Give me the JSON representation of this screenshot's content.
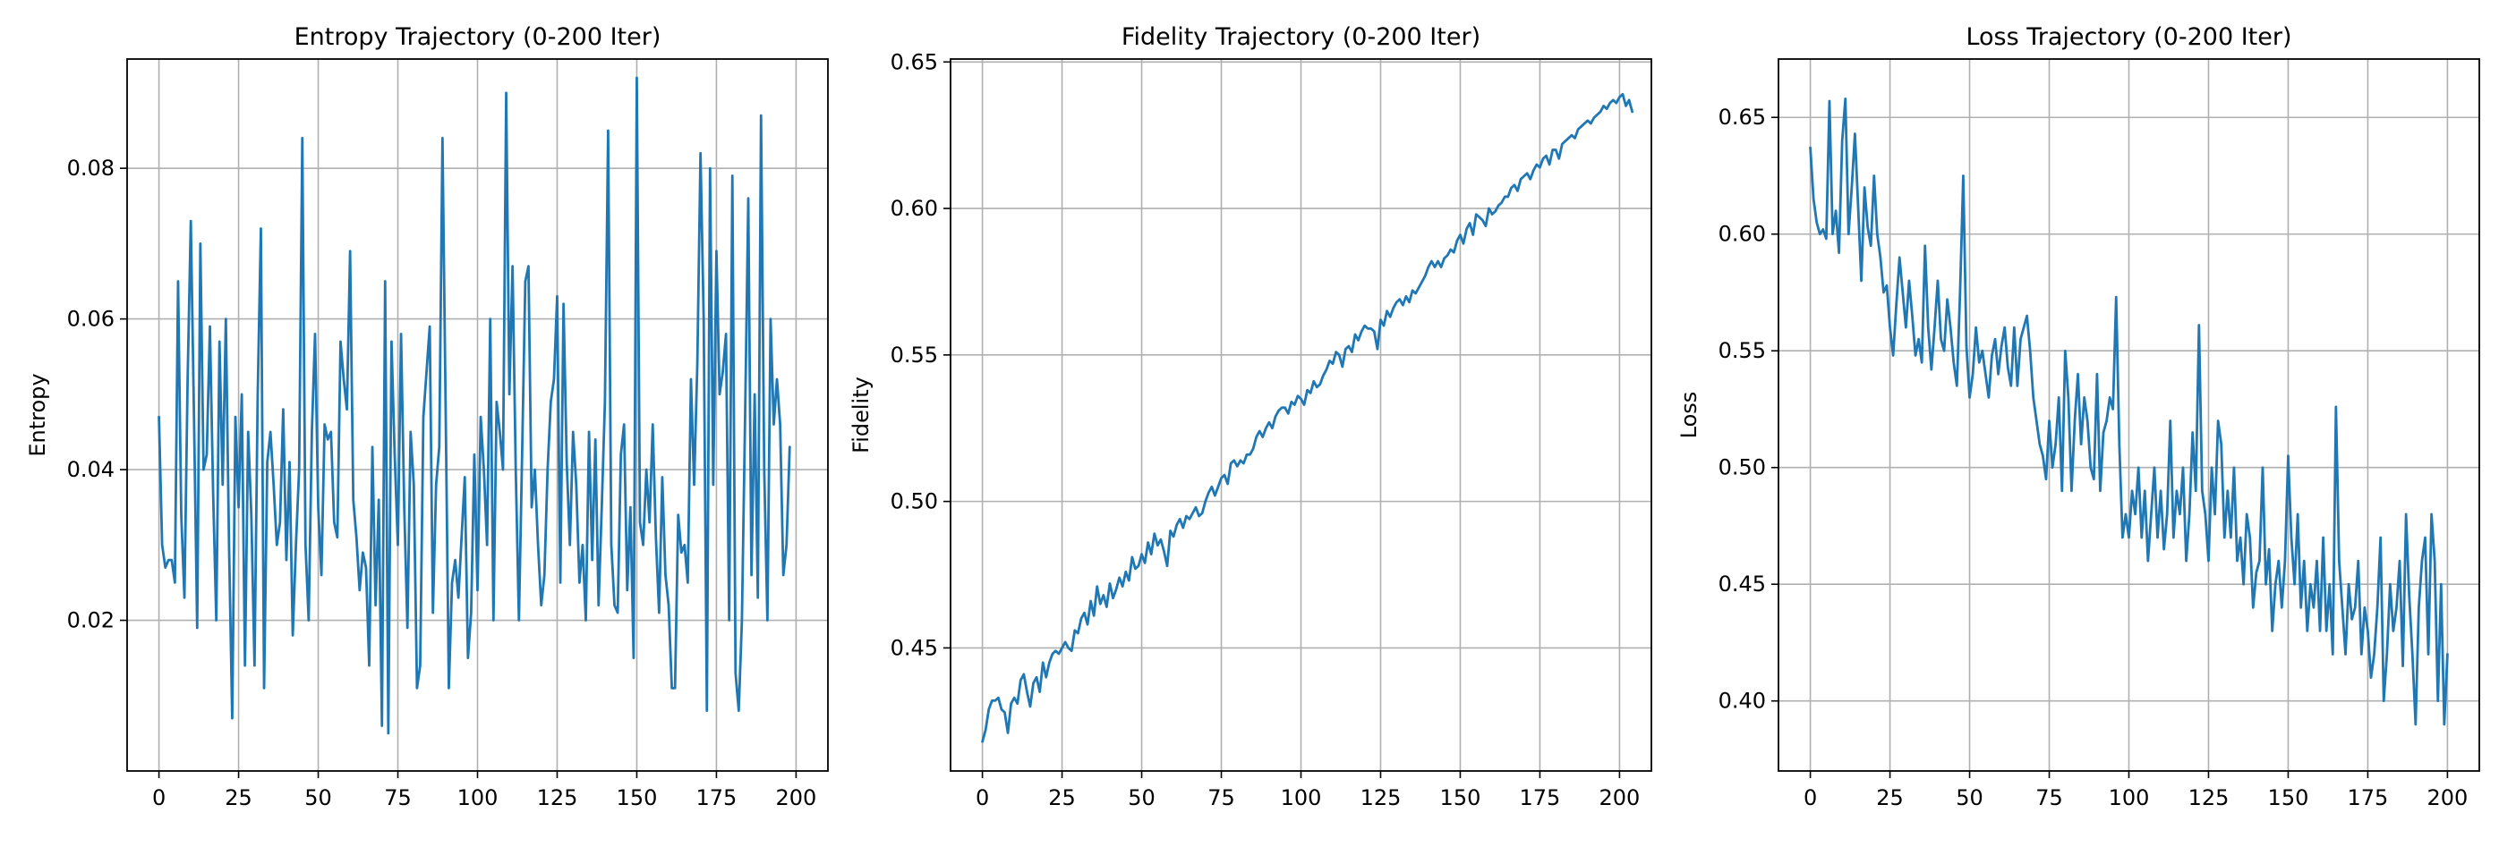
{
  "figure": {
    "background": "#ffffff",
    "line_color": "#1f77b4",
    "grid_color": "#b0b0b0"
  },
  "chart_data": [
    {
      "type": "line",
      "title": "Entropy Trajectory (0-200 Iter)",
      "xlabel": "",
      "ylabel": "Entropy",
      "xlim": [
        -10,
        210
      ],
      "ylim": [
        0.0,
        0.0945
      ],
      "xticks": [
        0,
        25,
        50,
        75,
        100,
        125,
        150,
        175,
        200
      ],
      "xtick_labels": [
        "0",
        "25",
        "50",
        "75",
        "100",
        "125",
        "150",
        "175",
        "200"
      ],
      "yticks": [
        0.02,
        0.04,
        0.06,
        0.08
      ],
      "ytick_labels": [
        "0.02",
        "0.04",
        "0.06",
        "0.08"
      ],
      "grid": true,
      "series": [
        {
          "color": "#1f77b4",
          "x_start": 0,
          "x_step": 1,
          "values": [
            0.047,
            0.03,
            0.027,
            0.028,
            0.028,
            0.025,
            0.065,
            0.034,
            0.023,
            0.052,
            0.073,
            0.047,
            0.019,
            0.07,
            0.04,
            0.042,
            0.059,
            0.037,
            0.02,
            0.057,
            0.038,
            0.06,
            0.03,
            0.007,
            0.047,
            0.035,
            0.05,
            0.014,
            0.045,
            0.034,
            0.014,
            0.05,
            0.072,
            0.011,
            0.041,
            0.045,
            0.038,
            0.03,
            0.033,
            0.048,
            0.028,
            0.041,
            0.018,
            0.03,
            0.04,
            0.084,
            0.03,
            0.02,
            0.045,
            0.058,
            0.035,
            0.026,
            0.046,
            0.044,
            0.045,
            0.033,
            0.031,
            0.057,
            0.052,
            0.048,
            0.069,
            0.036,
            0.031,
            0.024,
            0.029,
            0.027,
            0.014,
            0.043,
            0.022,
            0.036,
            0.006,
            0.065,
            0.005,
            0.057,
            0.042,
            0.03,
            0.058,
            0.035,
            0.019,
            0.045,
            0.038,
            0.011,
            0.014,
            0.047,
            0.053,
            0.059,
            0.021,
            0.038,
            0.043,
            0.084,
            0.048,
            0.011,
            0.025,
            0.028,
            0.023,
            0.031,
            0.039,
            0.015,
            0.021,
            0.042,
            0.024,
            0.047,
            0.04,
            0.03,
            0.06,
            0.02,
            0.049,
            0.045,
            0.04,
            0.09,
            0.05,
            0.067,
            0.04,
            0.02,
            0.042,
            0.065,
            0.067,
            0.035,
            0.04,
            0.03,
            0.022,
            0.026,
            0.04,
            0.049,
            0.052,
            0.063,
            0.025,
            0.062,
            0.041,
            0.03,
            0.045,
            0.038,
            0.025,
            0.03,
            0.02,
            0.045,
            0.028,
            0.044,
            0.022,
            0.035,
            0.049,
            0.085,
            0.03,
            0.022,
            0.021,
            0.042,
            0.046,
            0.024,
            0.035,
            0.015,
            0.092,
            0.033,
            0.03,
            0.04,
            0.033,
            0.046,
            0.031,
            0.021,
            0.039,
            0.026,
            0.022,
            0.011,
            0.011,
            0.034,
            0.029,
            0.03,
            0.025,
            0.052,
            0.038,
            0.054,
            0.082,
            0.06,
            0.008,
            0.08,
            0.038,
            0.069,
            0.05,
            0.053,
            0.058,
            0.02,
            0.079,
            0.013,
            0.008,
            0.02,
            0.047,
            0.076,
            0.026,
            0.05,
            0.023,
            0.087,
            0.04,
            0.02,
            0.06,
            0.046,
            0.052,
            0.046,
            0.026,
            0.03,
            0.043
          ]
        }
      ]
    },
    {
      "type": "line",
      "title": "Fidelity Trajectory (0-200 Iter)",
      "xlabel": "",
      "ylabel": "Fidelity",
      "xlim": [
        -10,
        210
      ],
      "ylim": [
        0.408,
        0.651
      ],
      "xticks": [
        0,
        25,
        50,
        75,
        100,
        125,
        150,
        175,
        200
      ],
      "xtick_labels": [
        "0",
        "25",
        "50",
        "75",
        "100",
        "125",
        "150",
        "175",
        "200"
      ],
      "yticks": [
        0.45,
        0.5,
        0.55,
        0.6,
        0.65
      ],
      "ytick_labels": [
        "0.45",
        "0.50",
        "0.55",
        "0.60",
        "0.65"
      ],
      "grid": true,
      "series": [
        {
          "color": "#1f77b4",
          "x_start": 0,
          "x_step": 1,
          "values": [
            0.418,
            0.422,
            0.429,
            0.432,
            0.432,
            0.433,
            0.429,
            0.428,
            0.421,
            0.431,
            0.433,
            0.431,
            0.439,
            0.441,
            0.435,
            0.43,
            0.438,
            0.44,
            0.435,
            0.445,
            0.44,
            0.445,
            0.448,
            0.449,
            0.448,
            0.45,
            0.452,
            0.45,
            0.449,
            0.456,
            0.455,
            0.46,
            0.462,
            0.458,
            0.466,
            0.461,
            0.471,
            0.465,
            0.468,
            0.464,
            0.472,
            0.467,
            0.47,
            0.474,
            0.471,
            0.476,
            0.473,
            0.481,
            0.477,
            0.478,
            0.482,
            0.479,
            0.486,
            0.482,
            0.489,
            0.485,
            0.487,
            0.483,
            0.478,
            0.49,
            0.488,
            0.492,
            0.494,
            0.491,
            0.495,
            0.494,
            0.496,
            0.498,
            0.495,
            0.496,
            0.5,
            0.503,
            0.505,
            0.502,
            0.505,
            0.508,
            0.509,
            0.506,
            0.513,
            0.514,
            0.512,
            0.514,
            0.513,
            0.516,
            0.516,
            0.518,
            0.522,
            0.524,
            0.522,
            0.525,
            0.527,
            0.525,
            0.529,
            0.531,
            0.532,
            0.532,
            0.53,
            0.534,
            0.533,
            0.536,
            0.535,
            0.533,
            0.538,
            0.537,
            0.541,
            0.539,
            0.54,
            0.543,
            0.545,
            0.548,
            0.547,
            0.551,
            0.55,
            0.546,
            0.552,
            0.553,
            0.551,
            0.557,
            0.555,
            0.558,
            0.56,
            0.559,
            0.559,
            0.558,
            0.552,
            0.562,
            0.56,
            0.565,
            0.563,
            0.566,
            0.568,
            0.569,
            0.567,
            0.57,
            0.568,
            0.572,
            0.571,
            0.573,
            0.575,
            0.577,
            0.58,
            0.582,
            0.58,
            0.582,
            0.58,
            0.583,
            0.584,
            0.586,
            0.585,
            0.589,
            0.591,
            0.588,
            0.593,
            0.595,
            0.591,
            0.598,
            0.597,
            0.596,
            0.594,
            0.6,
            0.598,
            0.599,
            0.601,
            0.602,
            0.604,
            0.604,
            0.607,
            0.608,
            0.606,
            0.61,
            0.611,
            0.612,
            0.61,
            0.613,
            0.615,
            0.614,
            0.617,
            0.618,
            0.615,
            0.62,
            0.62,
            0.617,
            0.622,
            0.623,
            0.624,
            0.625,
            0.624,
            0.627,
            0.628,
            0.629,
            0.63,
            0.629,
            0.631,
            0.632,
            0.633,
            0.635,
            0.634,
            0.636,
            0.637,
            0.636,
            0.638,
            0.639,
            0.635,
            0.637,
            0.633
          ]
        }
      ]
    },
    {
      "type": "line",
      "title": "Loss Trajectory (0-200 Iter)",
      "xlabel": "",
      "ylabel": "Loss",
      "xlim": [
        -10,
        210
      ],
      "ylim": [
        0.37,
        0.675
      ],
      "xticks": [
        0,
        25,
        50,
        75,
        100,
        125,
        150,
        175,
        200
      ],
      "xtick_labels": [
        "0",
        "25",
        "50",
        "75",
        "100",
        "125",
        "150",
        "175",
        "200"
      ],
      "yticks": [
        0.4,
        0.45,
        0.5,
        0.55,
        0.6,
        0.65
      ],
      "ytick_labels": [
        "0.40",
        "0.45",
        "0.50",
        "0.55",
        "0.60",
        "0.65"
      ],
      "grid": true,
      "series": [
        {
          "color": "#1f77b4",
          "x_start": 0,
          "x_step": 1,
          "values": [
            0.637,
            0.615,
            0.605,
            0.6,
            0.602,
            0.598,
            0.657,
            0.6,
            0.61,
            0.592,
            0.64,
            0.658,
            0.6,
            0.62,
            0.643,
            0.612,
            0.58,
            0.62,
            0.603,
            0.595,
            0.625,
            0.6,
            0.59,
            0.575,
            0.578,
            0.56,
            0.548,
            0.57,
            0.59,
            0.575,
            0.56,
            0.58,
            0.565,
            0.548,
            0.555,
            0.545,
            0.595,
            0.56,
            0.542,
            0.56,
            0.58,
            0.555,
            0.55,
            0.572,
            0.56,
            0.545,
            0.535,
            0.575,
            0.625,
            0.552,
            0.53,
            0.54,
            0.56,
            0.545,
            0.55,
            0.54,
            0.53,
            0.548,
            0.555,
            0.54,
            0.552,
            0.56,
            0.543,
            0.535,
            0.56,
            0.535,
            0.555,
            0.56,
            0.565,
            0.55,
            0.53,
            0.52,
            0.51,
            0.505,
            0.495,
            0.52,
            0.5,
            0.51,
            0.53,
            0.49,
            0.55,
            0.53,
            0.49,
            0.52,
            0.54,
            0.51,
            0.53,
            0.52,
            0.5,
            0.495,
            0.54,
            0.49,
            0.515,
            0.52,
            0.53,
            0.525,
            0.573,
            0.51,
            0.47,
            0.48,
            0.47,
            0.49,
            0.48,
            0.5,
            0.47,
            0.49,
            0.46,
            0.48,
            0.5,
            0.47,
            0.49,
            0.465,
            0.48,
            0.52,
            0.47,
            0.49,
            0.48,
            0.5,
            0.46,
            0.48,
            0.515,
            0.49,
            0.561,
            0.49,
            0.48,
            0.46,
            0.5,
            0.48,
            0.52,
            0.51,
            0.47,
            0.49,
            0.47,
            0.5,
            0.46,
            0.47,
            0.45,
            0.48,
            0.47,
            0.44,
            0.455,
            0.46,
            0.5,
            0.45,
            0.465,
            0.43,
            0.45,
            0.46,
            0.44,
            0.46,
            0.505,
            0.47,
            0.45,
            0.48,
            0.44,
            0.46,
            0.43,
            0.45,
            0.44,
            0.46,
            0.43,
            0.47,
            0.43,
            0.45,
            0.42,
            0.526,
            0.46,
            0.44,
            0.42,
            0.45,
            0.435,
            0.44,
            0.46,
            0.42,
            0.44,
            0.43,
            0.41,
            0.42,
            0.44,
            0.47,
            0.4,
            0.42,
            0.45,
            0.43,
            0.44,
            0.46,
            0.415,
            0.48,
            0.445,
            0.42,
            0.39,
            0.44,
            0.46,
            0.47,
            0.42,
            0.48,
            0.46,
            0.4,
            0.45,
            0.39,
            0.42
          ]
        }
      ]
    }
  ]
}
